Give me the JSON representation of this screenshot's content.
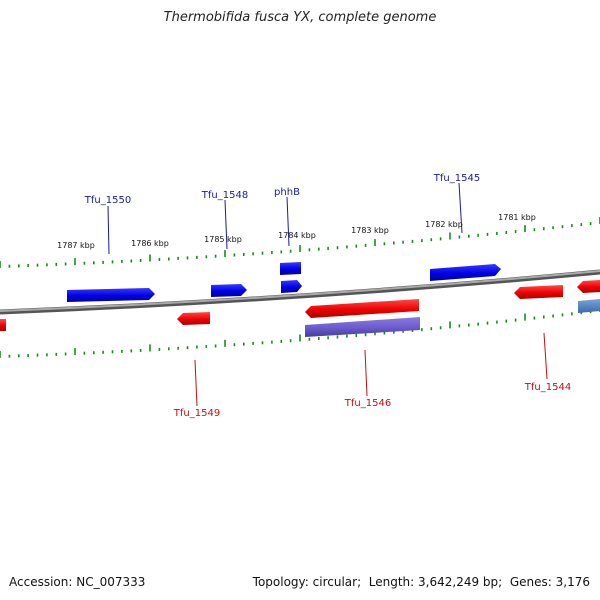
{
  "title": "Thermobifida fusca YX, complete genome",
  "footer": {
    "accession_label": "Accession:",
    "accession": "NC_007333",
    "topology_label": "Topology:",
    "topology": "circular",
    "length_label": "Length:",
    "length": "3,642,249 bp",
    "genes_label": "Genes:",
    "genes": "3,176"
  },
  "colors": {
    "forward_gene": "#1010e0",
    "reverse_gene": "#e81010",
    "rna_feature": "#6a5acd",
    "backbone": "#888888",
    "tick": "#1a8a1a",
    "forward_label": "#1a1aa0",
    "reverse_label": "#c01010",
    "kbp_label": "#111111"
  },
  "kbp_ticks": [
    "1787 kbp",
    "1786 kbp",
    "1785 kbp",
    "1784 kbp",
    "1783 kbp",
    "1782 kbp",
    "1781 kbp"
  ],
  "genes_forward": [
    "Tfu_1550",
    "Tfu_1548",
    "phhB",
    "Tfu_1545"
  ],
  "genes_reverse": [
    "Tfu_1549",
    "Tfu_1546",
    "Tfu_1544"
  ]
}
